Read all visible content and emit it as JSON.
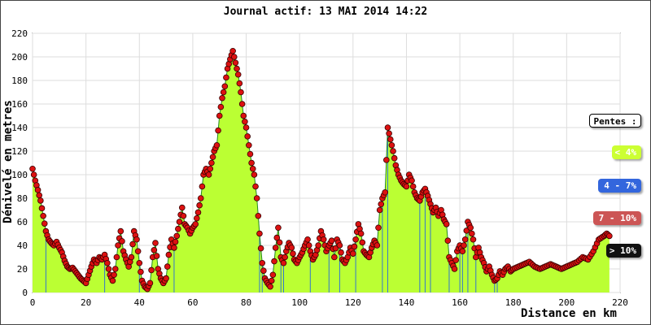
{
  "chart_data": {
    "type": "area",
    "title": "Journal actif: 13 MAI 2014 14:22",
    "xlabel": "Distance en km",
    "ylabel": "Dénivelé en metres",
    "xlim": [
      0,
      220
    ],
    "ylim": [
      0,
      220
    ],
    "xticks": [
      0,
      20,
      40,
      60,
      80,
      100,
      120,
      140,
      160,
      180,
      200,
      220
    ],
    "yticks": [
      0,
      20,
      40,
      60,
      80,
      100,
      120,
      140,
      160,
      180,
      200,
      220
    ],
    "grid": true,
    "series": [
      {
        "points": [
          [
            0,
            105
          ],
          [
            1,
            95
          ],
          [
            2,
            87
          ],
          [
            3,
            78
          ],
          [
            4,
            65
          ],
          [
            5,
            52
          ],
          [
            6,
            45
          ],
          [
            7,
            42
          ],
          [
            8,
            40
          ],
          [
            9,
            43
          ],
          [
            10,
            38
          ],
          [
            11,
            34
          ],
          [
            12,
            27
          ],
          [
            13,
            22
          ],
          [
            14,
            20
          ],
          [
            15,
            21
          ],
          [
            16,
            18
          ],
          [
            17,
            15
          ],
          [
            18,
            12
          ],
          [
            19,
            10
          ],
          [
            20,
            8
          ],
          [
            21,
            15
          ],
          [
            22,
            22
          ],
          [
            23,
            28
          ],
          [
            24,
            25
          ],
          [
            25,
            30
          ],
          [
            26,
            28
          ],
          [
            27,
            32
          ],
          [
            28,
            25
          ],
          [
            29,
            15
          ],
          [
            30,
            10
          ],
          [
            31,
            20
          ],
          [
            32,
            40
          ],
          [
            33,
            52
          ],
          [
            34,
            35
          ],
          [
            35,
            28
          ],
          [
            36,
            22
          ],
          [
            37,
            30
          ],
          [
            38,
            52
          ],
          [
            39,
            45
          ],
          [
            40,
            25
          ],
          [
            41,
            10
          ],
          [
            42,
            5
          ],
          [
            43,
            3
          ],
          [
            44,
            8
          ],
          [
            45,
            30
          ],
          [
            46,
            42
          ],
          [
            47,
            20
          ],
          [
            48,
            12
          ],
          [
            49,
            8
          ],
          [
            50,
            12
          ],
          [
            51,
            32
          ],
          [
            52,
            45
          ],
          [
            53,
            38
          ],
          [
            54,
            48
          ],
          [
            55,
            60
          ],
          [
            56,
            72
          ],
          [
            57,
            58
          ],
          [
            58,
            55
          ],
          [
            59,
            50
          ],
          [
            60,
            55
          ],
          [
            61,
            58
          ],
          [
            62,
            68
          ],
          [
            63,
            80
          ],
          [
            64,
            100
          ],
          [
            65,
            105
          ],
          [
            66,
            100
          ],
          [
            67,
            110
          ],
          [
            68,
            120
          ],
          [
            69,
            125
          ],
          [
            70,
            150
          ],
          [
            71,
            165
          ],
          [
            72,
            175
          ],
          [
            73,
            190
          ],
          [
            74,
            198
          ],
          [
            75,
            205
          ],
          [
            76,
            195
          ],
          [
            77,
            185
          ],
          [
            78,
            170
          ],
          [
            79,
            150
          ],
          [
            80,
            140
          ],
          [
            81,
            125
          ],
          [
            82,
            110
          ],
          [
            83,
            100
          ],
          [
            84,
            80
          ],
          [
            85,
            50
          ],
          [
            86,
            25
          ],
          [
            87,
            12
          ],
          [
            88,
            8
          ],
          [
            89,
            5
          ],
          [
            90,
            15
          ],
          [
            91,
            38
          ],
          [
            92,
            55
          ],
          [
            93,
            30
          ],
          [
            94,
            25
          ],
          [
            95,
            35
          ],
          [
            96,
            42
          ],
          [
            97,
            38
          ],
          [
            98,
            28
          ],
          [
            99,
            25
          ],
          [
            100,
            30
          ],
          [
            101,
            34
          ],
          [
            102,
            40
          ],
          [
            103,
            45
          ],
          [
            104,
            35
          ],
          [
            105,
            28
          ],
          [
            106,
            32
          ],
          [
            107,
            40
          ],
          [
            108,
            52
          ],
          [
            109,
            45
          ],
          [
            110,
            35
          ],
          [
            111,
            40
          ],
          [
            112,
            44
          ],
          [
            113,
            30
          ],
          [
            114,
            45
          ],
          [
            115,
            40
          ],
          [
            116,
            28
          ],
          [
            117,
            25
          ],
          [
            118,
            30
          ],
          [
            119,
            38
          ],
          [
            120,
            33
          ],
          [
            121,
            45
          ],
          [
            122,
            58
          ],
          [
            123,
            50
          ],
          [
            124,
            35
          ],
          [
            125,
            32
          ],
          [
            126,
            30
          ],
          [
            127,
            38
          ],
          [
            128,
            44
          ],
          [
            129,
            40
          ],
          [
            130,
            70
          ],
          [
            131,
            80
          ],
          [
            132,
            85
          ],
          [
            133,
            140
          ],
          [
            134,
            130
          ],
          [
            135,
            120
          ],
          [
            136,
            108
          ],
          [
            137,
            100
          ],
          [
            138,
            95
          ],
          [
            139,
            92
          ],
          [
            140,
            90
          ],
          [
            141,
            100
          ],
          [
            142,
            95
          ],
          [
            143,
            85
          ],
          [
            144,
            80
          ],
          [
            145,
            78
          ],
          [
            146,
            85
          ],
          [
            147,
            88
          ],
          [
            148,
            82
          ],
          [
            149,
            75
          ],
          [
            150,
            68
          ],
          [
            151,
            72
          ],
          [
            152,
            65
          ],
          [
            153,
            70
          ],
          [
            154,
            62
          ],
          [
            155,
            58
          ],
          [
            156,
            30
          ],
          [
            157,
            25
          ],
          [
            158,
            20
          ],
          [
            159,
            35
          ],
          [
            160,
            40
          ],
          [
            161,
            35
          ],
          [
            162,
            45
          ],
          [
            163,
            60
          ],
          [
            164,
            55
          ],
          [
            165,
            45
          ],
          [
            166,
            30
          ],
          [
            167,
            38
          ],
          [
            168,
            30
          ],
          [
            169,
            25
          ],
          [
            170,
            18
          ],
          [
            171,
            22
          ],
          [
            172,
            15
          ],
          [
            173,
            10
          ],
          [
            174,
            12
          ],
          [
            175,
            18
          ],
          [
            176,
            15
          ],
          [
            177,
            20
          ],
          [
            178,
            22
          ],
          [
            179,
            18
          ],
          [
            180,
            20
          ],
          [
            182,
            22
          ],
          [
            184,
            24
          ],
          [
            186,
            26
          ],
          [
            188,
            22
          ],
          [
            190,
            20
          ],
          [
            192,
            22
          ],
          [
            194,
            24
          ],
          [
            196,
            22
          ],
          [
            198,
            20
          ],
          [
            200,
            22
          ],
          [
            202,
            24
          ],
          [
            204,
            26
          ],
          [
            206,
            30
          ],
          [
            208,
            28
          ],
          [
            210,
            35
          ],
          [
            212,
            45
          ],
          [
            214,
            48
          ],
          [
            215,
            50
          ],
          [
            216,
            48
          ]
        ]
      }
    ],
    "legend": {
      "title": "Pentes :",
      "items": [
        {
          "label": "< 4%",
          "color": "#ccff33",
          "text_color": "#ffffff"
        },
        {
          "label": "4 - 7%",
          "color": "#3366dd",
          "text_color": "#ffffff"
        },
        {
          "label": "7 - 10%",
          "color": "#cc5555",
          "text_color": "#ffffff"
        },
        {
          "label": "> 10%",
          "color": "#111111",
          "text_color": "#ffffff"
        }
      ]
    },
    "colors": {
      "fill": "#bbff33",
      "line": "#228822",
      "marker": "#dd1111",
      "vline": "#3377cc"
    }
  }
}
